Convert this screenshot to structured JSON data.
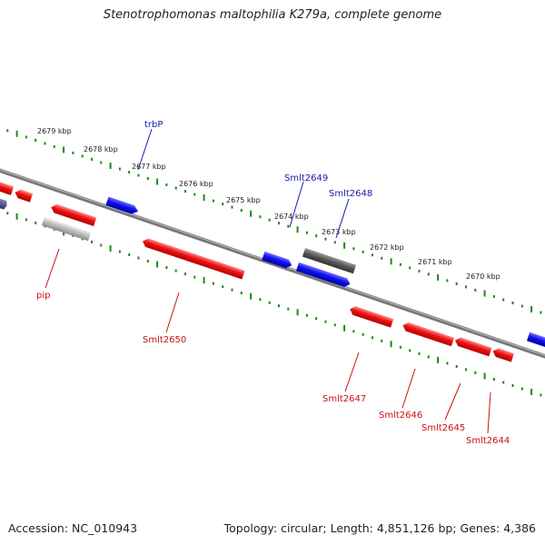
{
  "title": "Stenotrophomonas maltophilia K279a, complete genome",
  "footer": {
    "accession": "Accession: NC_010943",
    "summary": "Topology: circular; Length: 4,851,126 bp; Genes: 4,386"
  },
  "kbp_labels": [
    "2679 kbp",
    "2678 kbp",
    "2677 kbp",
    "2676 kbp",
    "2675 kbp",
    "2674 kbp",
    "2673 kbp",
    "2672 kbp",
    "2671 kbp",
    "2670 kbp"
  ],
  "gene_labels": {
    "forward": [
      "trbP",
      "Smlt2649",
      "Smlt2648"
    ],
    "reverse": [
      "pip",
      "Smlt2650",
      "Smlt2647",
      "Smlt2646",
      "Smlt2645",
      "Smlt2644"
    ]
  },
  "colors": {
    "forward": "#1010ee",
    "reverse": "#ee1111",
    "pseudo_forward": "#555555",
    "pseudo_reverse": "#aaaaaa",
    "ticks": "#1a8a1a",
    "backbone": "#777777",
    "forward_label": "#1a1aa8",
    "reverse_label": "#cc1111"
  }
}
